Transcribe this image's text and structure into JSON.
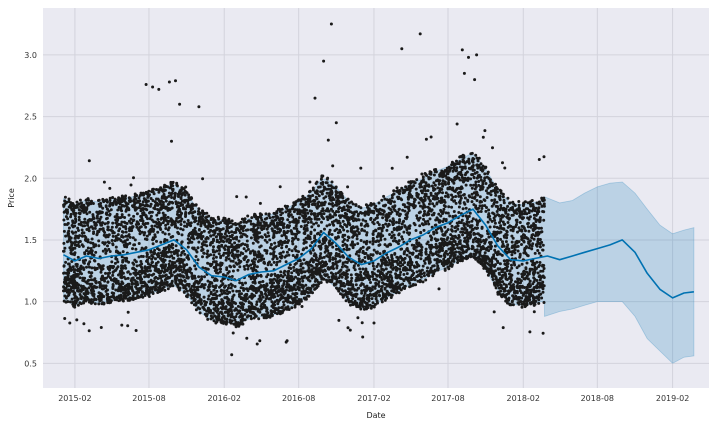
{
  "chart_data": {
    "type": "scatter",
    "title": "",
    "xlabel": "Date",
    "ylabel": "Price",
    "x_axis_type": "date",
    "xlim": [
      "2014-11-15",
      "2019-05-01"
    ],
    "ylim": [
      0.3,
      3.38
    ],
    "grid": true,
    "x_ticks": [
      "2015-02",
      "2015-08",
      "2016-02",
      "2016-08",
      "2017-02",
      "2017-08",
      "2018-02",
      "2018-08",
      "2019-02"
    ],
    "y_ticks": [
      "0.5",
      "1.0",
      "1.5",
      "2.0",
      "2.5",
      "3.0"
    ],
    "observed_range": [
      "2015-01-04",
      "2018-03-25"
    ],
    "series": [
      {
        "kind": "forecast_line",
        "color": "#0072B2",
        "points": [
          [
            "2015-01-04",
            1.38
          ],
          [
            "2015-02-01",
            1.33
          ],
          [
            "2015-03-01",
            1.37
          ],
          [
            "2015-04-01",
            1.35
          ],
          [
            "2015-05-01",
            1.37
          ],
          [
            "2015-06-01",
            1.38
          ],
          [
            "2015-07-01",
            1.4
          ],
          [
            "2015-08-01",
            1.42
          ],
          [
            "2015-09-01",
            1.46
          ],
          [
            "2015-10-01",
            1.5
          ],
          [
            "2015-11-01",
            1.42
          ],
          [
            "2015-12-01",
            1.28
          ],
          [
            "2016-01-01",
            1.21
          ],
          [
            "2016-02-01",
            1.2
          ],
          [
            "2016-03-01",
            1.17
          ],
          [
            "2016-04-01",
            1.22
          ],
          [
            "2016-05-01",
            1.24
          ],
          [
            "2016-06-01",
            1.25
          ],
          [
            "2016-07-01",
            1.3
          ],
          [
            "2016-08-01",
            1.35
          ],
          [
            "2016-09-01",
            1.43
          ],
          [
            "2016-10-01",
            1.56
          ],
          [
            "2016-11-01",
            1.47
          ],
          [
            "2016-12-01",
            1.36
          ],
          [
            "2017-01-01",
            1.3
          ],
          [
            "2017-02-01",
            1.33
          ],
          [
            "2017-03-01",
            1.39
          ],
          [
            "2017-04-01",
            1.44
          ],
          [
            "2017-05-01",
            1.5
          ],
          [
            "2017-06-01",
            1.54
          ],
          [
            "2017-07-01",
            1.6
          ],
          [
            "2017-08-01",
            1.64
          ],
          [
            "2017-09-01",
            1.7
          ],
          [
            "2017-10-01",
            1.75
          ],
          [
            "2017-11-01",
            1.62
          ],
          [
            "2017-12-01",
            1.45
          ],
          [
            "2018-01-01",
            1.34
          ],
          [
            "2018-02-01",
            1.33
          ],
          [
            "2018-03-01",
            1.35
          ],
          [
            "2018-04-01",
            1.37
          ],
          [
            "2018-05-01",
            1.34
          ],
          [
            "2018-06-01",
            1.37
          ],
          [
            "2018-07-01",
            1.4
          ],
          [
            "2018-08-01",
            1.43
          ],
          [
            "2018-09-01",
            1.46
          ],
          [
            "2018-10-01",
            1.5
          ],
          [
            "2018-11-01",
            1.4
          ],
          [
            "2018-12-01",
            1.23
          ],
          [
            "2019-01-01",
            1.1
          ],
          [
            "2019-02-01",
            1.03
          ],
          [
            "2019-03-01",
            1.07
          ],
          [
            "2019-03-25",
            1.08
          ]
        ]
      },
      {
        "kind": "uncertainty_band",
        "color": "#0072B2",
        "points": [
          [
            "2018-03-25",
            0.88,
            1.85
          ],
          [
            "2018-05-01",
            0.92,
            1.8
          ],
          [
            "2018-06-01",
            0.94,
            1.82
          ],
          [
            "2018-07-01",
            0.97,
            1.88
          ],
          [
            "2018-08-01",
            1.0,
            1.93
          ],
          [
            "2018-09-01",
            1.0,
            1.96
          ],
          [
            "2018-10-01",
            1.0,
            1.97
          ],
          [
            "2018-11-01",
            0.88,
            1.88
          ],
          [
            "2018-12-01",
            0.7,
            1.75
          ],
          [
            "2019-01-01",
            0.6,
            1.62
          ],
          [
            "2019-02-01",
            0.5,
            1.55
          ],
          [
            "2019-03-01",
            0.55,
            1.58
          ],
          [
            "2019-03-25",
            0.56,
            1.6
          ]
        ]
      },
      {
        "kind": "observed_points",
        "color": "#1a1a1a",
        "count": 17000,
        "spread_below": 0.38,
        "spread_above": 0.48,
        "outliers": [
          [
            "2015-07-25",
            2.76
          ],
          [
            "2015-08-10",
            2.74
          ],
          [
            "2015-08-25",
            2.72
          ],
          [
            "2015-09-20",
            2.78
          ],
          [
            "2015-10-05",
            2.79
          ],
          [
            "2015-10-15",
            2.6
          ],
          [
            "2015-12-01",
            2.58
          ],
          [
            "2016-10-20",
            3.25
          ],
          [
            "2016-10-01",
            2.95
          ],
          [
            "2016-09-10",
            2.65
          ],
          [
            "2016-11-01",
            2.45
          ],
          [
            "2017-04-10",
            3.05
          ],
          [
            "2017-05-25",
            3.17
          ],
          [
            "2017-09-05",
            3.04
          ],
          [
            "2017-09-20",
            2.98
          ],
          [
            "2017-10-10",
            3.0
          ],
          [
            "2017-09-10",
            2.85
          ],
          [
            "2017-10-05",
            2.8
          ]
        ]
      }
    ]
  }
}
